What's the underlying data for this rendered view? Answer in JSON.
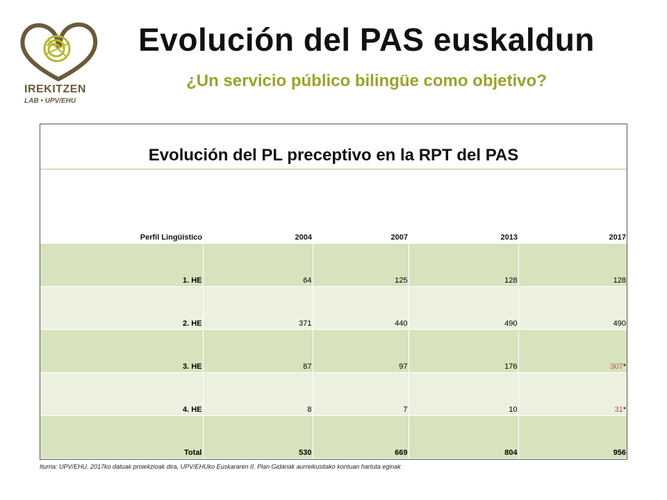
{
  "logo": {
    "name": "IREKITZEN",
    "subtext": "LAB • UPV/EHU"
  },
  "header": {
    "title": "Evolución del PAS euskaldun",
    "subtitle": "¿Un servicio público bilingüe como objetivo?"
  },
  "table": {
    "title": "Evolución del PL preceptivo en la RPT del PAS",
    "columns": [
      "Perfil Lingüístico",
      "2004",
      "2007",
      "2013",
      "2017"
    ],
    "rows": [
      {
        "label": "1. HE",
        "v2004": "64",
        "v2007": "125",
        "v2013": "128",
        "v2017": "128",
        "mark": ""
      },
      {
        "label": "2. HE",
        "v2004": "371",
        "v2007": "440",
        "v2013": "490",
        "v2017": "490",
        "mark": ""
      },
      {
        "label": "3. HE",
        "v2004": "87",
        "v2007": "97",
        "v2013": "176",
        "v2017": "307",
        "mark": "*"
      },
      {
        "label": "4. HE",
        "v2004": "8",
        "v2007": "7",
        "v2013": "10",
        "v2017": "31",
        "mark": "*"
      },
      {
        "label": "Total",
        "v2004": "530",
        "v2007": "669",
        "v2013": "804",
        "v2017": "956",
        "mark": ""
      }
    ]
  },
  "source": "Iturria:  UPV/EHU.  2017ko datuak proiekzioak dira, UPV/EHUko  Euskararen II. Plan Gidariak aurreikusitako kontuan hartuta eginak",
  "colors": {
    "accent": "#9aa32a",
    "row_dark": "#d7e3bd",
    "row_light": "#ebf1de",
    "highlight": "#c0504d",
    "logo_brown": "#6b5a3a"
  }
}
